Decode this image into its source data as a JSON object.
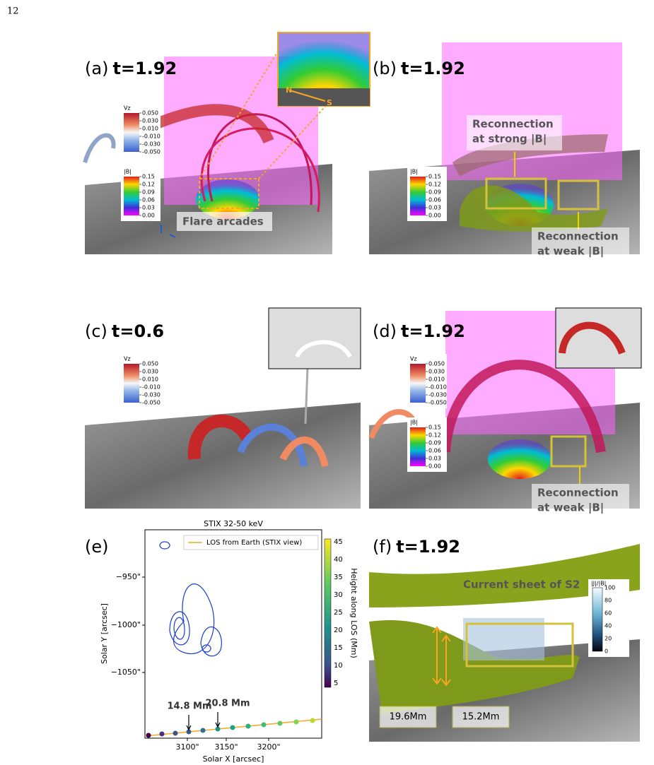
{
  "page_number": "12",
  "panels": {
    "a": {
      "label": "(a)",
      "time": "t=1.92",
      "colorbars": [
        {
          "title": "Vz",
          "ticks": [
            "0.050",
            "0.030",
            "0.010",
            "-0.010",
            "-0.030",
            "-0.050"
          ]
        },
        {
          "title": "|B|",
          "ticks": [
            "0.15",
            "0.12",
            "0.09",
            "0.06",
            "0.03",
            "0.00"
          ]
        }
      ],
      "inset": [
        "N",
        "S"
      ],
      "annotations": [
        {
          "lines": [
            "Flare arcades"
          ]
        }
      ]
    },
    "b": {
      "label": "(b)",
      "time": "t=1.92",
      "colorbars": [
        {
          "title": "|B|",
          "ticks": [
            "0.15",
            "0.12",
            "0.09",
            "0.06",
            "0.03",
            "0.00"
          ]
        }
      ],
      "annotations": [
        {
          "lines": [
            "Reconnection",
            "at strong |B|"
          ]
        },
        {
          "lines": [
            "Reconnection",
            "at weak |B|"
          ]
        }
      ]
    },
    "c": {
      "label": "(c)",
      "time": "t=0.6",
      "colorbars": [
        {
          "title": "Vz",
          "ticks": [
            "0.050",
            "0.030",
            "0.010",
            "-0.010",
            "-0.030",
            "-0.050"
          ]
        }
      ]
    },
    "d": {
      "label": "(d)",
      "time": "t=1.92",
      "colorbars": [
        {
          "title": "Vz",
          "ticks": [
            "0.050",
            "0.030",
            "0.010",
            "-0.010",
            "-0.030",
            "-0.050"
          ]
        },
        {
          "title": "|B|",
          "ticks": [
            "0.15",
            "0.12",
            "0.09",
            "0.06",
            "0.03",
            "0.00"
          ]
        }
      ],
      "annotations": [
        {
          "lines": [
            "Reconnection",
            "at weak |B|"
          ]
        }
      ]
    },
    "e": {
      "label": "(e)",
      "title": "STIX 32-50 keV",
      "legend": "LOS from Earth (STIX view)",
      "xlabel": "Solar X [arcsec]",
      "ylabel": "Solar Y [arcsec]",
      "xticks": [
        "3100\"",
        "3150\"",
        "3200\""
      ],
      "yticks": [
        "−950\"",
        "−1000\"",
        "−1050\""
      ],
      "colorbar_label": "Height along LOS (Mm)",
      "colorbar_ticks": [
        "45",
        "40",
        "35",
        "30",
        "25",
        "20",
        "15",
        "10",
        "5"
      ],
      "annotations": [
        "14.8 Mm",
        "20.8 Mm"
      ]
    },
    "f": {
      "label": "(f)",
      "time": "t=1.92",
      "annotation": "Current sheet of S2",
      "colorbar": {
        "title": "|J|/|B|",
        "ticks": [
          "100",
          "80",
          "60",
          "40",
          "20",
          "0"
        ]
      },
      "measures": [
        "19.6Mm",
        "15.2Mm"
      ]
    }
  }
}
